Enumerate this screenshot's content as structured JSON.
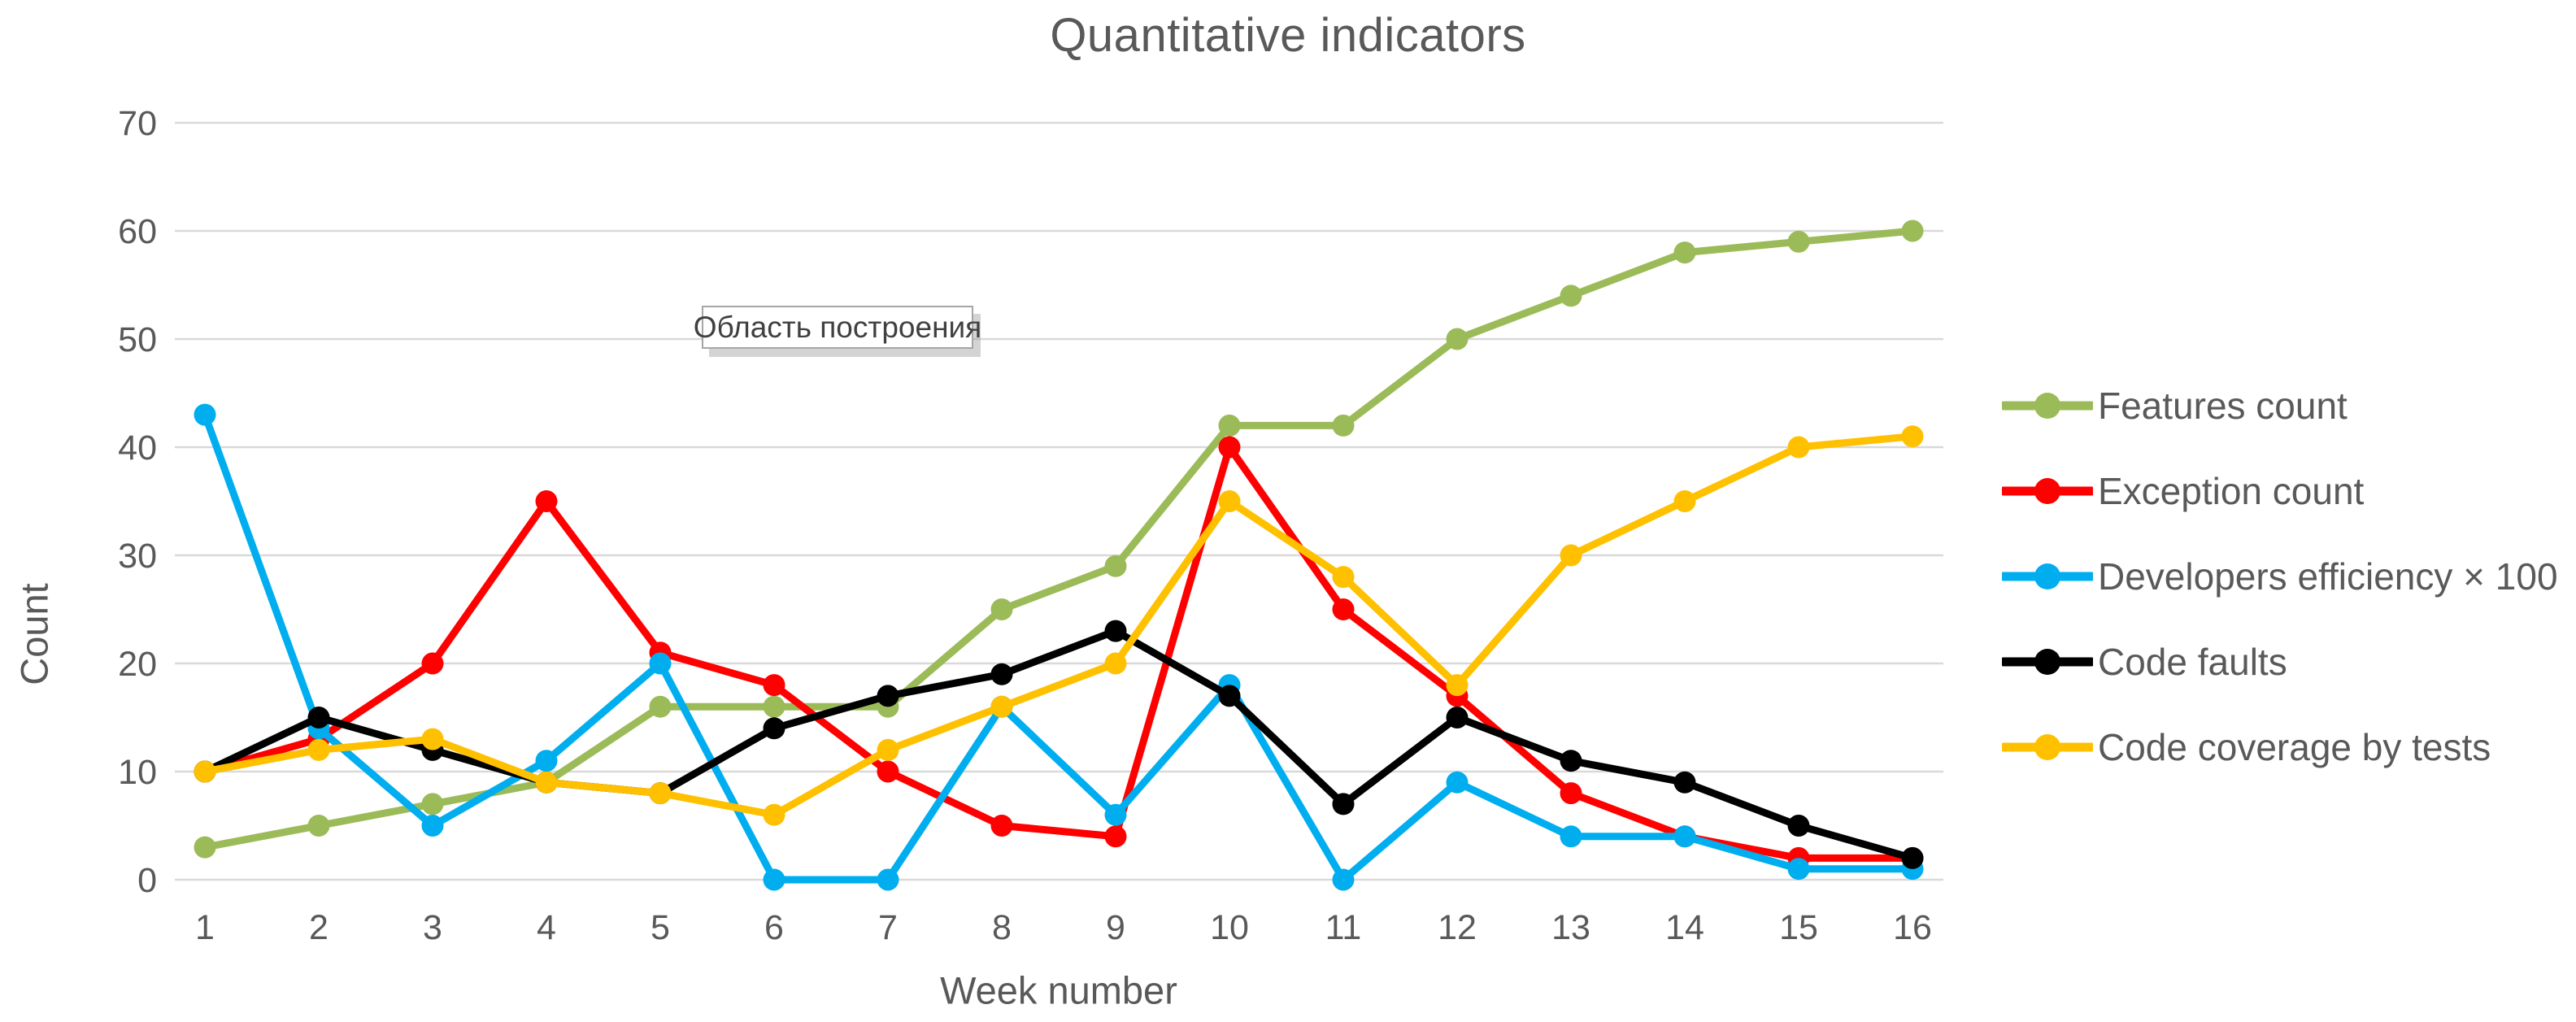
{
  "page_title": "Quantitative indicators",
  "tooltip": {
    "text": "Область построения"
  },
  "colors": {
    "grid": "#D9D9D9",
    "text": "#595959",
    "tooltip_border": "#A6A6A6",
    "series_green": "#9BBB59",
    "series_red": "#FF0000",
    "series_blue": "#00AEEF",
    "series_black": "#000000",
    "series_yellow": "#FFC000"
  },
  "chart_data": {
    "type": "line",
    "title": "Quantitative indicators",
    "xlabel": "Week number",
    "ylabel": "Count",
    "x": [
      1,
      2,
      3,
      4,
      5,
      6,
      7,
      8,
      9,
      10,
      11,
      12,
      13,
      14,
      15,
      16
    ],
    "ylim": [
      0,
      70
    ],
    "ytick_step": 10,
    "grid": true,
    "legend_position": "right",
    "marker": "circle",
    "series": [
      {
        "name": "Features count",
        "color": "#9BBB59",
        "values": [
          3,
          5,
          7,
          9,
          16,
          16,
          16,
          25,
          29,
          42,
          42,
          50,
          54,
          58,
          59,
          60
        ]
      },
      {
        "name": "Exception count",
        "color": "#FF0000",
        "values": [
          10,
          13,
          20,
          35,
          21,
          18,
          10,
          5,
          4,
          40,
          25,
          17,
          8,
          4,
          2,
          2
        ]
      },
      {
        "name": "Developers efficiency × 100",
        "color": "#00AEEF",
        "values": [
          43,
          14,
          5,
          11,
          20,
          0,
          0,
          16,
          6,
          18,
          0,
          9,
          4,
          4,
          1,
          1
        ]
      },
      {
        "name": "Code faults",
        "color": "#000000",
        "values": [
          10,
          15,
          12,
          9,
          8,
          14,
          17,
          19,
          23,
          17,
          7,
          15,
          11,
          9,
          5,
          2
        ]
      },
      {
        "name": "Code coverage by tests",
        "color": "#FFC000",
        "values": [
          10,
          12,
          13,
          9,
          8,
          6,
          12,
          16,
          20,
          35,
          28,
          18,
          30,
          35,
          40,
          41
        ]
      }
    ]
  }
}
